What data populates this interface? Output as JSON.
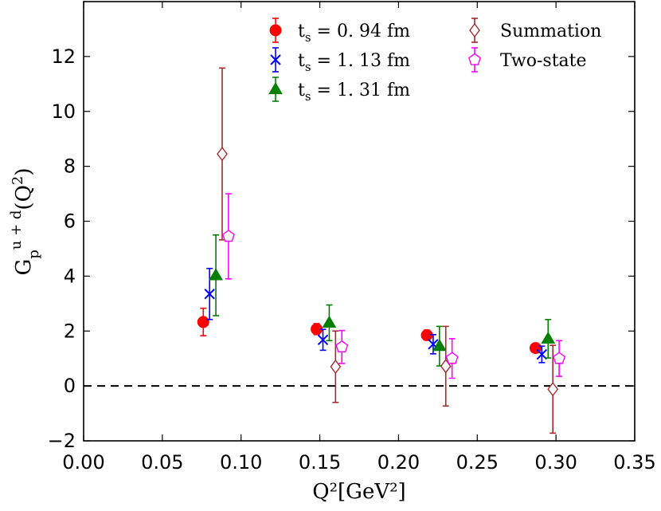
{
  "chart_data": {
    "type": "scatter",
    "title": "",
    "xlabel": "Q²[GeV²]",
    "ylabel": "G_p^{u+d}(Q²)",
    "xlim": [
      0.0,
      0.35
    ],
    "ylim": [
      -2,
      14
    ],
    "xticks": [
      0.0,
      0.05,
      0.1,
      0.15,
      0.2,
      0.25,
      0.3,
      0.35
    ],
    "xtick_labels": [
      "0.00",
      "0.05",
      "0.10",
      "0.15",
      "0.20",
      "0.25",
      "0.30",
      "0.35"
    ],
    "yticks": [
      -2,
      0,
      2,
      4,
      6,
      8,
      10,
      12
    ],
    "ytick_labels": [
      "−2",
      "0",
      "2",
      "4",
      "6",
      "8",
      "10",
      "12"
    ],
    "reference_line": {
      "y": 0,
      "style": "dashed"
    },
    "legend": {
      "placement": "top-right",
      "columns": 2
    },
    "series": [
      {
        "name": "t_s = 0.94 fm",
        "label_parts": [
          "t",
          "s",
          " = 0. 94 fm"
        ],
        "marker": "circle",
        "color": "#ff0000",
        "filled": true,
        "points": [
          {
            "x": 0.076,
            "y": 2.33,
            "err": 0.5
          },
          {
            "x": 0.148,
            "y": 2.07,
            "err": 0.2
          },
          {
            "x": 0.218,
            "y": 1.85,
            "err": 0.18
          },
          {
            "x": 0.287,
            "y": 1.38,
            "err": 0.15
          }
        ]
      },
      {
        "name": "t_s = 1.13 fm",
        "label_parts": [
          "t",
          "s",
          " = 1. 13 fm"
        ],
        "marker": "x",
        "color": "#0000ff",
        "filled": false,
        "points": [
          {
            "x": 0.08,
            "y": 3.35,
            "err": 0.93
          },
          {
            "x": 0.152,
            "y": 1.68,
            "err": 0.38
          },
          {
            "x": 0.222,
            "y": 1.52,
            "err": 0.35
          },
          {
            "x": 0.291,
            "y": 1.15,
            "err": 0.3
          }
        ]
      },
      {
        "name": "t_s = 1.31 fm",
        "label_parts": [
          "t",
          "s",
          " = 1. 31 fm"
        ],
        "marker": "triangle",
        "color": "#007f00",
        "filled": true,
        "points": [
          {
            "x": 0.084,
            "y": 4.03,
            "err": 1.47
          },
          {
            "x": 0.156,
            "y": 2.3,
            "err": 0.65
          },
          {
            "x": 0.226,
            "y": 1.45,
            "err": 0.72
          },
          {
            "x": 0.295,
            "y": 1.72,
            "err": 0.7
          }
        ]
      },
      {
        "name": "Summation",
        "label_parts": [
          "Summation"
        ],
        "marker": "diamond",
        "color": "#a52a2a",
        "filled": false,
        "points": [
          {
            "x": 0.088,
            "y": 8.45,
            "err": 3.13
          },
          {
            "x": 0.16,
            "y": 0.7,
            "err": 1.3
          },
          {
            "x": 0.23,
            "y": 0.72,
            "err": 1.45
          },
          {
            "x": 0.298,
            "y": -0.12,
            "err": 1.6
          }
        ]
      },
      {
        "name": "Two-state",
        "label_parts": [
          "Two-state"
        ],
        "marker": "pentagon",
        "color": "#ff00ff",
        "filled": false,
        "points": [
          {
            "x": 0.092,
            "y": 5.45,
            "err": 1.55
          },
          {
            "x": 0.164,
            "y": 1.42,
            "err": 0.6
          },
          {
            "x": 0.234,
            "y": 1.0,
            "err": 0.72
          },
          {
            "x": 0.302,
            "y": 1.0,
            "err": 0.65
          }
        ]
      }
    ]
  }
}
